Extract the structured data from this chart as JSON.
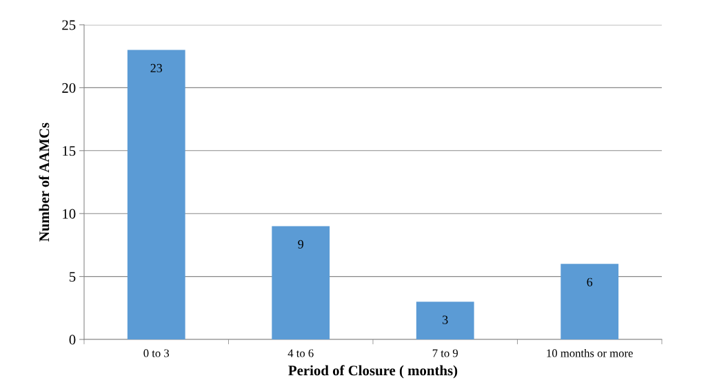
{
  "chart_data": {
    "type": "bar",
    "xlabel": "Period of Closure ( months)",
    "ylabel": "Number of AAMCs",
    "categories": [
      "0 to 3",
      "4 to 6",
      "7 to 9",
      "10 months or more"
    ],
    "values": [
      23,
      9,
      3,
      6
    ],
    "color": "#5b9bd5",
    "ylim": [
      0,
      25
    ],
    "yticks": [
      0,
      5,
      10,
      15,
      20,
      25
    ],
    "grid": "y",
    "data_labels": true
  }
}
